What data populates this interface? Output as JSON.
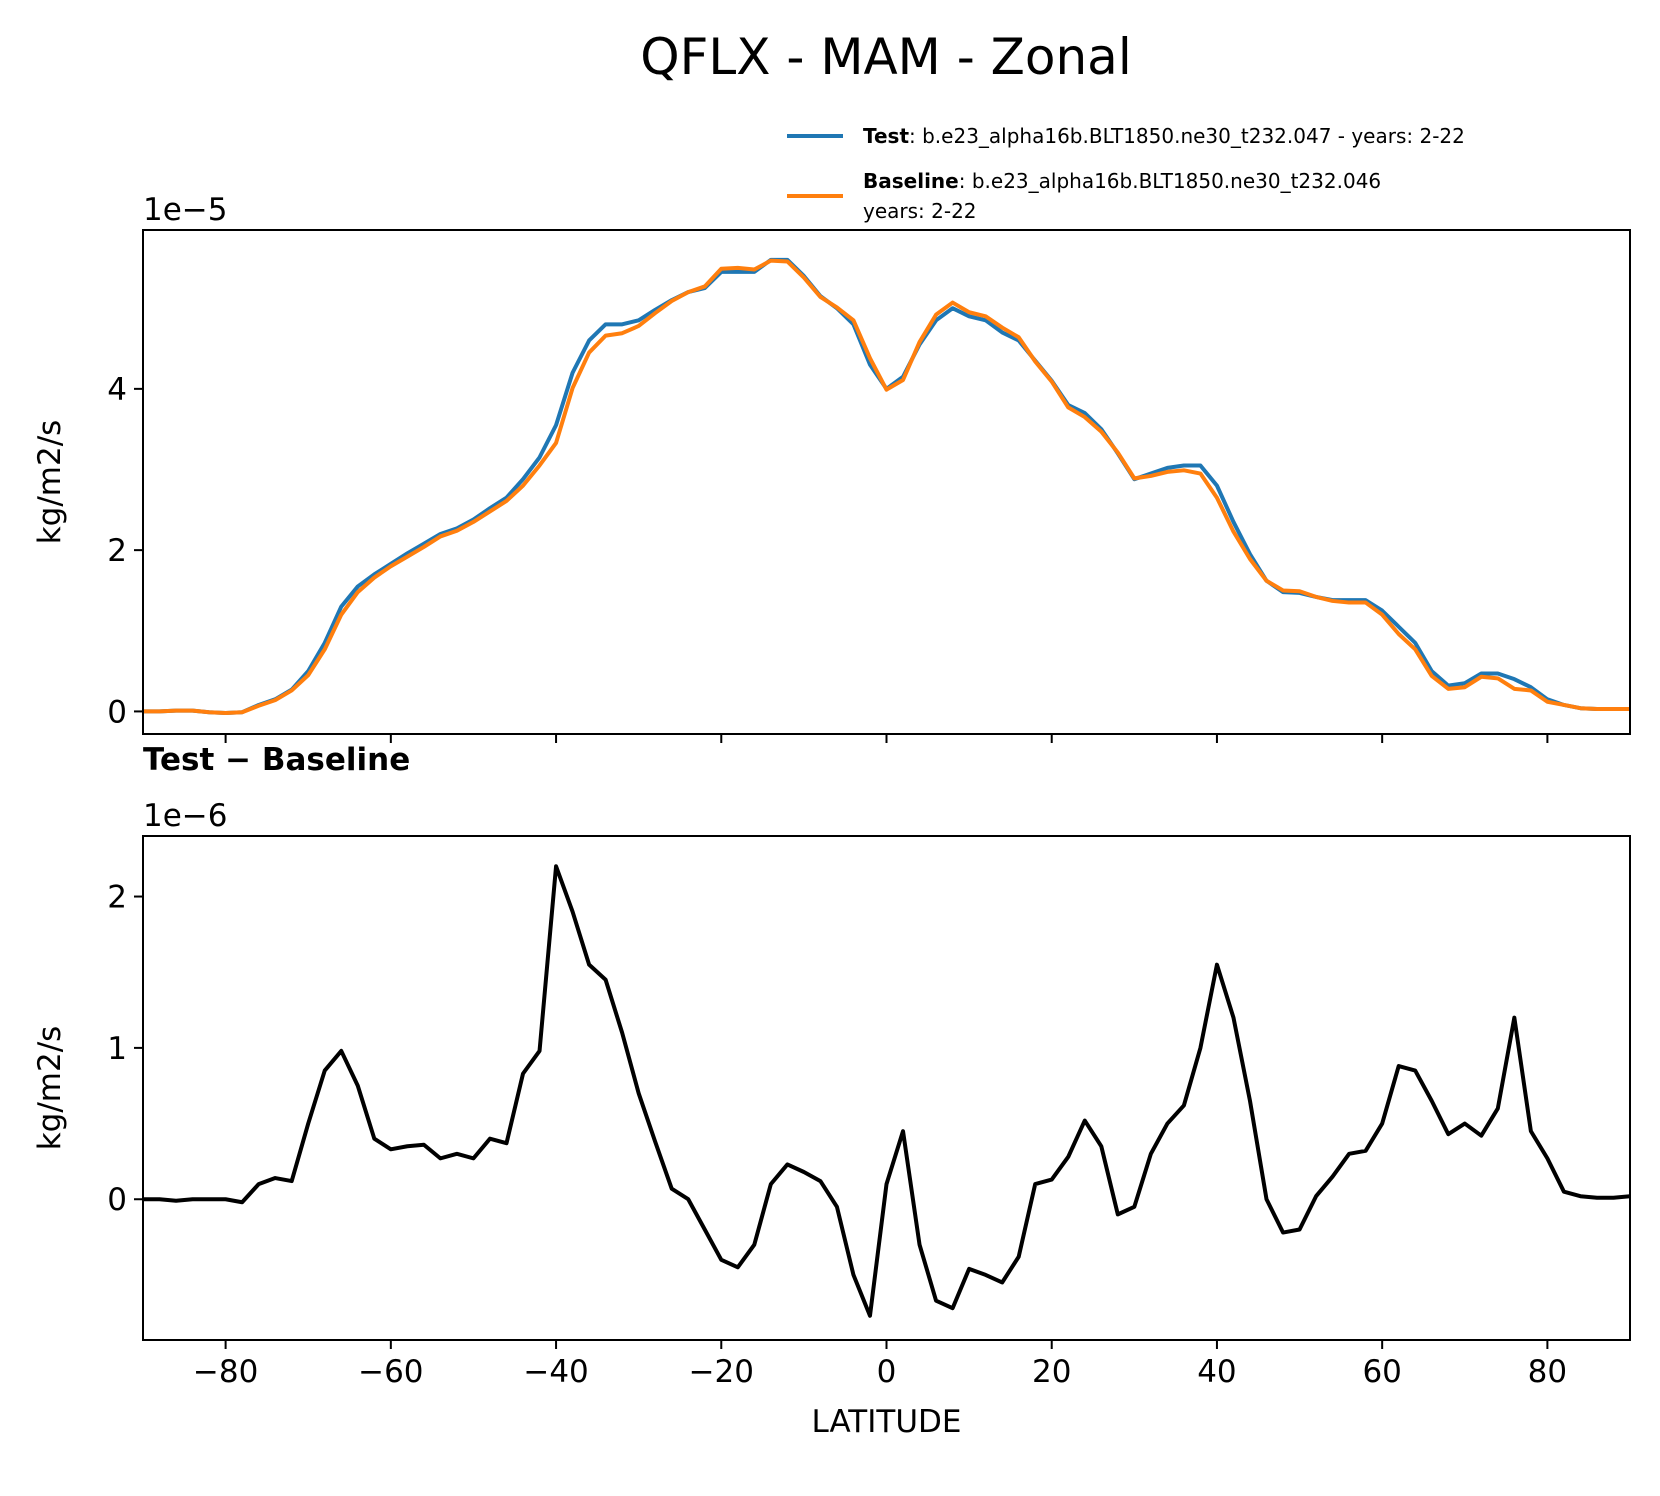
{
  "title": "QFLX - MAM - Zonal",
  "chart_data": [
    {
      "type": "line",
      "offset_label": "1e−5",
      "ylabel": "kg/m2/s",
      "x": [
        -90,
        -88,
        -86,
        -84,
        -82,
        -80,
        -78,
        -76,
        -74,
        -72,
        -70,
        -68,
        -66,
        -64,
        -62,
        -60,
        -58,
        -56,
        -54,
        -52,
        -50,
        -48,
        -46,
        -44,
        -42,
        -40,
        -38,
        -36,
        -34,
        -32,
        -30,
        -28,
        -26,
        -24,
        -22,
        -20,
        -18,
        -16,
        -14,
        -12,
        -10,
        -8,
        -6,
        -4,
        -2,
        0,
        2,
        4,
        6,
        8,
        10,
        12,
        14,
        16,
        18,
        20,
        22,
        24,
        26,
        28,
        30,
        32,
        34,
        36,
        38,
        40,
        42,
        44,
        46,
        48,
        50,
        52,
        54,
        56,
        58,
        60,
        62,
        64,
        66,
        68,
        70,
        72,
        74,
        76,
        78,
        80,
        82,
        84,
        86,
        88,
        90
      ],
      "series": [
        {
          "name": "Test",
          "description": [
            ": b.e23_alpha16b.BLT1850.ne30_t232.047 - years: 2-22"
          ],
          "color": "#1f77b4",
          "values": [
            0,
            0,
            0.01,
            0.01,
            -0.01,
            -0.02,
            -0.01,
            0.08,
            0.15,
            0.27,
            0.5,
            0.85,
            1.3,
            1.55,
            1.7,
            1.83,
            1.96,
            2.08,
            2.2,
            2.27,
            2.38,
            2.52,
            2.65,
            2.88,
            3.15,
            3.55,
            4.2,
            4.6,
            4.8,
            4.8,
            4.85,
            4.98,
            5.1,
            5.2,
            5.25,
            5.45,
            5.45,
            5.45,
            5.6,
            5.6,
            5.4,
            5.15,
            5.0,
            4.8,
            4.3,
            4.0,
            4.15,
            4.55,
            4.85,
            5.0,
            4.9,
            4.85,
            4.7,
            4.6,
            4.35,
            4.1,
            3.8,
            3.7,
            3.5,
            3.2,
            2.88,
            2.95,
            3.02,
            3.05,
            3.05,
            2.8,
            2.35,
            1.95,
            1.62,
            1.48,
            1.47,
            1.42,
            1.38,
            1.38,
            1.38,
            1.25,
            1.05,
            0.85,
            0.5,
            0.32,
            0.35,
            0.47,
            0.47,
            0.4,
            0.3,
            0.15,
            0.08,
            0.04,
            0.03,
            0.03,
            0.03
          ]
        },
        {
          "name": "Baseline",
          "description": [
            ": b.e23_alpha16b.BLT1850.ne30_t232.046",
            "years: 2-22"
          ],
          "color": "#ff7f0e",
          "values": [
            0,
            0,
            0.01,
            0.01,
            -0.01,
            -0.02,
            -0.01,
            0.07,
            0.14,
            0.26,
            0.45,
            0.77,
            1.2,
            1.48,
            1.66,
            1.8,
            1.92,
            2.04,
            2.17,
            2.24,
            2.35,
            2.48,
            2.61,
            2.8,
            3.05,
            3.33,
            4.01,
            4.45,
            4.66,
            4.69,
            4.78,
            4.94,
            5.09,
            5.2,
            5.27,
            5.49,
            5.5,
            5.48,
            5.59,
            5.58,
            5.38,
            5.14,
            5.01,
            4.85,
            4.38,
            3.99,
            4.11,
            4.58,
            4.92,
            5.07,
            4.95,
            4.9,
            4.76,
            4.64,
            4.34,
            4.09,
            3.77,
            3.65,
            3.47,
            3.21,
            2.89,
            2.92,
            2.97,
            2.99,
            2.95,
            2.65,
            2.23,
            1.89,
            1.62,
            1.5,
            1.49,
            1.42,
            1.37,
            1.35,
            1.35,
            1.2,
            0.96,
            0.77,
            0.44,
            0.28,
            0.3,
            0.43,
            0.41,
            0.28,
            0.26,
            0.12,
            0.08,
            0.04,
            0.03,
            0.03,
            0.03
          ]
        }
      ],
      "xlim": [
        -90,
        90
      ],
      "ylim": [
        -0.28,
        5.97
      ],
      "yticks": [
        0,
        2,
        4
      ],
      "xticks": [
        {
          "value": -80,
          "label": "−80"
        },
        {
          "value": -60,
          "label": "−60"
        },
        {
          "value": -40,
          "label": "−40"
        },
        {
          "value": -20,
          "label": "−20"
        },
        0,
        20,
        40,
        60,
        80
      ],
      "show_xtick_labels": false,
      "legend": "upper right"
    },
    {
      "type": "line",
      "title": "Test − Baseline",
      "offset_label": "1e−6",
      "ylabel": "kg/m2/s",
      "xlabel": "LATITUDE",
      "x": [
        -90,
        -88,
        -86,
        -84,
        -82,
        -80,
        -78,
        -76,
        -74,
        -72,
        -70,
        -68,
        -66,
        -64,
        -62,
        -60,
        -58,
        -56,
        -54,
        -52,
        -50,
        -48,
        -46,
        -44,
        -42,
        -40,
        -38,
        -36,
        -34,
        -32,
        -30,
        -28,
        -26,
        -24,
        -22,
        -20,
        -18,
        -16,
        -14,
        -12,
        -10,
        -8,
        -6,
        -4,
        -2,
        0,
        2,
        4,
        6,
        8,
        10,
        12,
        14,
        16,
        18,
        20,
        22,
        24,
        26,
        28,
        30,
        32,
        34,
        36,
        38,
        40,
        42,
        44,
        46,
        48,
        50,
        52,
        54,
        56,
        58,
        60,
        62,
        64,
        66,
        68,
        70,
        72,
        74,
        76,
        78,
        80,
        82,
        84,
        86,
        88,
        90
      ],
      "series": [
        {
          "color": "#000000",
          "values": [
            0,
            0,
            -0.01,
            0,
            0,
            0,
            -0.02,
            0.1,
            0.14,
            0.12,
            0.5,
            0.85,
            0.98,
            0.75,
            0.4,
            0.33,
            0.35,
            0.36,
            0.27,
            0.3,
            0.27,
            0.4,
            0.37,
            0.83,
            0.98,
            2.2,
            1.9,
            1.55,
            1.45,
            1.1,
            0.7,
            0.38,
            0.07,
            0,
            -0.2,
            -0.4,
            -0.45,
            -0.3,
            0.1,
            0.23,
            0.18,
            0.12,
            -0.05,
            -0.5,
            -0.77,
            0.1,
            0.45,
            -0.3,
            -0.67,
            -0.72,
            -0.46,
            -0.5,
            -0.55,
            -0.38,
            0.1,
            0.13,
            0.28,
            0.52,
            0.35,
            -0.1,
            -0.05,
            0.3,
            0.5,
            0.62,
            1.0,
            1.55,
            1.2,
            0.65,
            0,
            -0.22,
            -0.2,
            0.02,
            0.15,
            0.3,
            0.32,
            0.5,
            0.88,
            0.85,
            0.65,
            0.43,
            0.5,
            0.42,
            0.6,
            1.2,
            0.45,
            0.27,
            0.05,
            0.02,
            0.01,
            0.01,
            0.02
          ]
        }
      ],
      "xlim": [
        -90,
        90
      ],
      "ylim": [
        -0.93,
        2.4
      ],
      "yticks": [
        0,
        1,
        2
      ],
      "xticks": [
        {
          "value": -80,
          "label": "−80"
        },
        {
          "value": -60,
          "label": "−60"
        },
        {
          "value": -40,
          "label": "−40"
        },
        {
          "value": -20,
          "label": "−20"
        },
        0,
        20,
        40,
        60,
        80
      ],
      "show_xtick_labels": true
    }
  ]
}
